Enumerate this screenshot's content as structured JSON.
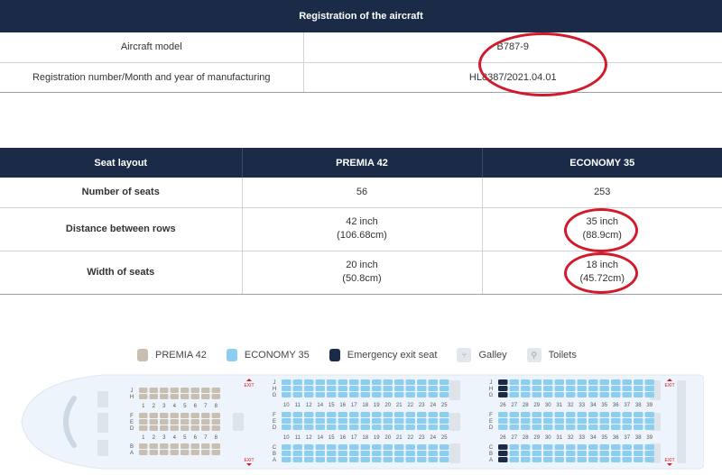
{
  "registration": {
    "header": "Registration of the aircraft",
    "rows": [
      {
        "label": "Aircraft model",
        "value": "B787-9"
      },
      {
        "label": "Registration number/Month and year of manufacturing",
        "value": "HL8387/2021.04.01"
      }
    ]
  },
  "seat_layout": {
    "headers": [
      "Seat layout",
      "PREMIA 42",
      "ECONOMY 35"
    ],
    "rows": [
      {
        "label": "Number of seats",
        "premia": [
          "56"
        ],
        "economy": [
          "253"
        ]
      },
      {
        "label": "Distance between rows",
        "premia": [
          "42 inch",
          "(106.68cm)"
        ],
        "economy": [
          "35 inch",
          "(88.9cm)"
        ]
      },
      {
        "label": "Width of seats",
        "premia": [
          "20 inch",
          "(50.8cm)"
        ],
        "economy": [
          "18 inch",
          "(45.72cm)"
        ]
      }
    ]
  },
  "legend": {
    "items": [
      {
        "label": "PREMIA 42",
        "color": "#c8bfb2"
      },
      {
        "label": "ECONOMY 35",
        "color": "#8ccdf2"
      },
      {
        "label": "Emergency exit seat",
        "color": "#1b2a47"
      },
      {
        "label": "Galley",
        "icon": "galley-icon"
      },
      {
        "label": "Toilets",
        "icon": "toilet-icon"
      }
    ]
  },
  "seat_map": {
    "exit_label": "EXIT",
    "premia": {
      "rows": [
        "1",
        "2",
        "3",
        "4",
        "5",
        "6",
        "7",
        "8"
      ],
      "top_letters": [
        "J",
        "H"
      ],
      "mid_letters": [
        "F",
        "E",
        "D"
      ],
      "bottom_letters": [
        "B",
        "A"
      ]
    },
    "economy_front": {
      "rows": [
        "10",
        "11",
        "12",
        "14",
        "15",
        "16",
        "17",
        "18",
        "19",
        "20",
        "21",
        "22",
        "23",
        "24",
        "25"
      ],
      "top_letters": [
        "J",
        "H",
        "G"
      ],
      "mid_letters": [
        "F",
        "E",
        "D"
      ],
      "bottom_letters": [
        "C",
        "B",
        "A"
      ]
    },
    "economy_rear": {
      "rows": [
        "26",
        "27",
        "28",
        "29",
        "30",
        "31",
        "32",
        "33",
        "34",
        "35",
        "36",
        "37",
        "38",
        "39"
      ],
      "top_letters": [
        "J",
        "H",
        "G"
      ],
      "mid_letters": [
        "F",
        "E",
        "D"
      ],
      "bottom_letters": [
        "C",
        "B",
        "A"
      ]
    },
    "colors": {
      "premia": "#c8bfb2",
      "economy": "#8ccdf2",
      "exit_seat": "#1b2a47",
      "fuselage": "#eef4fb",
      "facility": "#dfe3ea",
      "exit": "#d11a2a"
    }
  }
}
